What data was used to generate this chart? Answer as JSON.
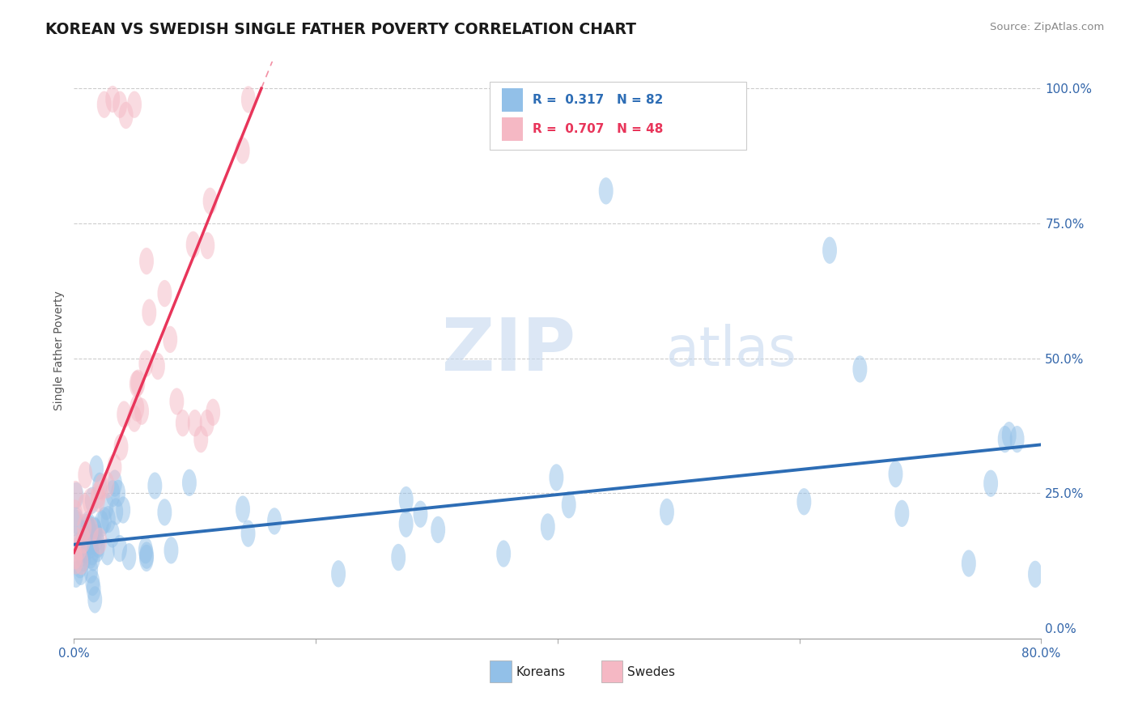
{
  "title": "KOREAN VS SWEDISH SINGLE FATHER POVERTY CORRELATION CHART",
  "source_text": "Source: ZipAtlas.com",
  "ylabel": "Single Father Poverty",
  "xlim": [
    0.0,
    0.8
  ],
  "ylim": [
    -0.02,
    1.05
  ],
  "korean_color": "#92C0E8",
  "swedish_color": "#F5B8C4",
  "korean_R": 0.317,
  "korean_N": 82,
  "swedish_R": 0.707,
  "swedish_N": 48,
  "watermark_zip": "ZIP",
  "watermark_atlas": "atlas",
  "background_color": "#ffffff",
  "grid_color": "#cccccc",
  "korean_line_color": "#2D6DB5",
  "swedish_line_color": "#E8355A",
  "korean_seed": 7,
  "swedish_seed": 13
}
